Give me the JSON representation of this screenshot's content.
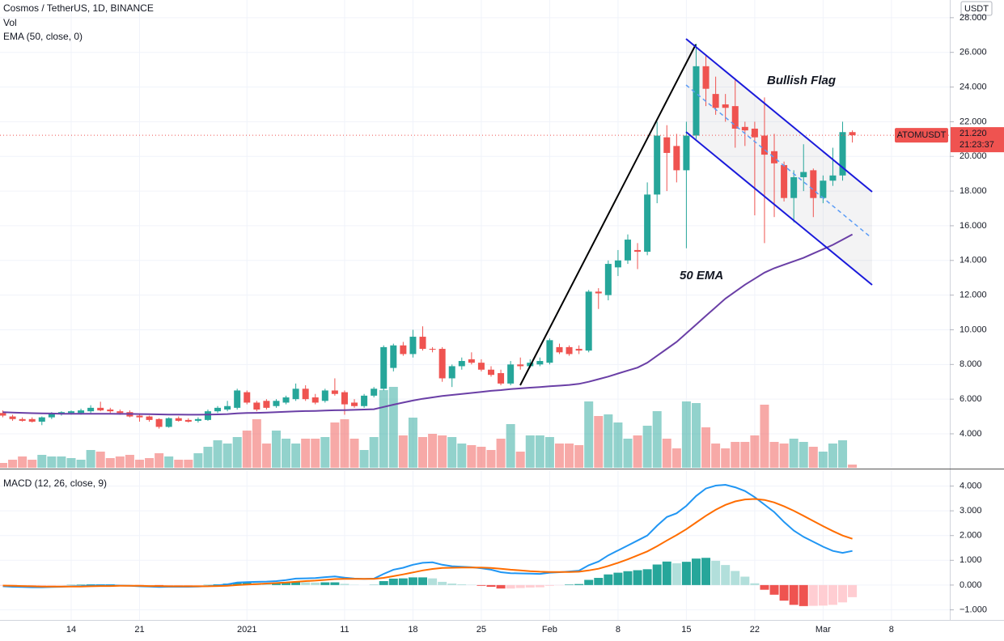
{
  "chart_data": [
    {
      "type": "candlestick",
      "title": "Cosmos / TetherUS, 1D, BINANCE",
      "currency": "USDT",
      "symbol": "ATOMUSDT",
      "last_price": {
        "value": 21.22,
        "label": "21.220"
      },
      "countdown": "21:23:37",
      "annotations": [
        "Bullish Flag",
        "50 EMA"
      ],
      "up_color": "#26a69a",
      "down_color": "#ef5350",
      "grid": true,
      "categories": [
        null,
        null,
        null,
        null,
        null,
        null,
        null,
        "14",
        null,
        null,
        null,
        null,
        null,
        null,
        "21",
        null,
        null,
        null,
        null,
        null,
        null,
        null,
        null,
        null,
        null,
        "2021",
        null,
        null,
        null,
        null,
        null,
        null,
        null,
        null,
        null,
        "11",
        null,
        null,
        null,
        null,
        null,
        null,
        "18",
        null,
        null,
        null,
        null,
        null,
        null,
        "25",
        null,
        null,
        null,
        null,
        null,
        null,
        "Feb",
        null,
        null,
        null,
        null,
        null,
        null,
        "8",
        null,
        null,
        null,
        null,
        null,
        null,
        "15",
        null,
        null,
        null,
        null,
        null,
        null,
        "22",
        null,
        null,
        null,
        null,
        null,
        null,
        "Mar",
        null,
        null,
        null,
        null,
        null,
        null,
        "8"
      ],
      "open": [
        5.2,
        5.0,
        4.85,
        4.85,
        4.7,
        4.95,
        5.15,
        5.2,
        5.2,
        5.3,
        5.5,
        5.4,
        5.3,
        5.25,
        5.05,
        5.0,
        4.85,
        4.4,
        4.9,
        4.8,
        4.75,
        4.8,
        5.3,
        5.4,
        5.5,
        6.4,
        5.8,
        5.9,
        5.6,
        5.8,
        6.0,
        6.6,
        6.1,
        5.9,
        6.5,
        6.4,
        5.8,
        5.6,
        6.2,
        6.6,
        7.8,
        9.1,
        8.6,
        9.6,
        8.9,
        8.9,
        7.2,
        7.9,
        8.3,
        8.1,
        7.7,
        7.5,
        6.9,
        8.0,
        7.9,
        8.0,
        8.1,
        9.0,
        9.0,
        8.9,
        8.8,
        12.2,
        12.0,
        13.6,
        14.0,
        14.6,
        14.5,
        17.8,
        21.1,
        20.6,
        19.2,
        21.2,
        25.2,
        23.6,
        23.0,
        22.9,
        21.7,
        21.6,
        21.2,
        20.3,
        19.5,
        17.6,
        18.8,
        19.2,
        17.6,
        18.6,
        18.9,
        21.4,
        null,
        null,
        null,
        null
      ],
      "high": [
        5.35,
        5.1,
        4.95,
        4.95,
        5.0,
        5.25,
        5.3,
        5.35,
        5.45,
        5.65,
        5.85,
        5.5,
        5.4,
        5.35,
        5.15,
        5.05,
        4.9,
        4.95,
        5.0,
        4.9,
        4.95,
        5.4,
        5.6,
        5.9,
        6.6,
        6.5,
        5.9,
        6.0,
        6.0,
        6.2,
        6.9,
        6.8,
        6.3,
        6.6,
        7.2,
        6.5,
        6.0,
        6.3,
        6.7,
        9.1,
        9.2,
        9.3,
        10.0,
        10.2,
        9.0,
        9.0,
        8.0,
        8.4,
        8.7,
        8.3,
        7.9,
        7.7,
        8.2,
        8.4,
        8.3,
        8.4,
        9.5,
        9.2,
        9.1,
        9.1,
        12.3,
        12.4,
        14.0,
        14.6,
        15.5,
        15.0,
        18.5,
        22.0,
        21.8,
        21.3,
        22.0,
        26.5,
        25.8,
        24.6,
        23.6,
        24.5,
        22.0,
        22.0,
        23.4,
        21.3,
        19.7,
        19.2,
        20.7,
        19.3,
        18.9,
        20.5,
        22.0,
        21.5,
        null,
        null,
        null,
        null
      ],
      "low": [
        4.95,
        4.75,
        4.7,
        4.65,
        4.5,
        4.85,
        5.05,
        5.1,
        5.1,
        5.2,
        5.3,
        5.2,
        5.1,
        4.95,
        4.7,
        4.7,
        4.3,
        4.35,
        4.7,
        4.65,
        4.65,
        4.75,
        5.2,
        5.3,
        5.4,
        5.7,
        5.3,
        5.4,
        5.5,
        5.7,
        5.9,
        5.9,
        5.7,
        5.8,
        6.2,
        5.1,
        5.5,
        5.5,
        6.1,
        6.5,
        7.6,
        8.5,
        8.4,
        8.8,
        8.7,
        7.0,
        6.7,
        7.7,
        8.0,
        7.6,
        7.3,
        6.8,
        6.8,
        7.7,
        7.8,
        7.9,
        8.0,
        8.6,
        8.5,
        8.6,
        8.7,
        11.2,
        11.7,
        13.1,
        13.8,
        13.5,
        14.3,
        17.3,
        18.0,
        18.5,
        14.7,
        21.0,
        22.9,
        22.4,
        22.0,
        20.5,
        20.6,
        16.6,
        15.0,
        16.5,
        17.4,
        16.2,
        18.0,
        16.5,
        17.3,
        18.3,
        18.6,
        20.8,
        null,
        null,
        null,
        null
      ],
      "close": [
        5.05,
        4.85,
        4.75,
        4.7,
        4.95,
        5.2,
        5.25,
        5.3,
        5.35,
        5.5,
        5.35,
        5.3,
        5.2,
        5.0,
        4.95,
        4.8,
        4.4,
        4.9,
        4.75,
        4.7,
        4.85,
        5.3,
        5.5,
        5.6,
        6.5,
        5.8,
        5.4,
        5.5,
        5.9,
        6.1,
        6.6,
        6.0,
        5.8,
        6.5,
        6.3,
        5.7,
        5.6,
        6.2,
        6.6,
        9.0,
        9.1,
        8.6,
        9.6,
        8.9,
        8.85,
        7.2,
        7.9,
        8.2,
        8.1,
        7.7,
        7.4,
        6.9,
        8.0,
        7.9,
        8.1,
        8.2,
        9.4,
        8.7,
        8.6,
        8.8,
        12.2,
        12.1,
        13.8,
        14.0,
        15.2,
        14.5,
        17.8,
        21.2,
        20.2,
        19.2,
        21.2,
        25.2,
        23.9,
        22.8,
        22.8,
        21.6,
        21.5,
        21.1,
        20.1,
        19.6,
        17.6,
        18.8,
        19.1,
        17.6,
        18.6,
        18.9,
        21.4,
        21.22,
        null,
        null,
        null,
        null
      ],
      "volume": {
        "name": "Vol",
        "up_color": "rgba(38,166,154,0.5)",
        "down_color": "rgba(239,83,80,0.5)",
        "values": [
          6,
          10,
          14,
          10,
          16,
          14,
          14,
          12,
          10,
          22,
          20,
          12,
          14,
          16,
          10,
          12,
          18,
          14,
          10,
          10,
          18,
          26,
          34,
          30,
          38,
          46,
          60,
          30,
          46,
          36,
          30,
          36,
          36,
          38,
          56,
          60,
          36,
          22,
          38,
          96,
          100,
          40,
          62,
          38,
          42,
          40,
          38,
          30,
          28,
          26,
          22,
          36,
          54,
          20,
          40,
          40,
          38,
          30,
          30,
          28,
          82,
          64,
          66,
          56,
          36,
          40,
          52,
          70,
          36,
          24,
          82,
          80,
          50,
          30,
          24,
          32,
          32,
          40,
          78,
          32,
          30,
          36,
          32,
          26,
          20,
          30,
          34,
          4,
          null,
          null,
          null,
          null
        ]
      },
      "series": [
        {
          "name": "EMA (50, close, 0)",
          "color": "#6a3fa6",
          "values": [
            5.25,
            5.23,
            5.21,
            5.19,
            5.18,
            5.17,
            5.16,
            5.16,
            5.16,
            5.16,
            5.16,
            5.16,
            5.15,
            5.15,
            5.14,
            5.13,
            5.12,
            5.11,
            5.11,
            5.1,
            5.1,
            5.11,
            5.12,
            5.14,
            5.18,
            5.2,
            5.21,
            5.23,
            5.25,
            5.27,
            5.3,
            5.31,
            5.32,
            5.34,
            5.36,
            5.37,
            5.38,
            5.4,
            5.42,
            5.55,
            5.68,
            5.8,
            5.92,
            6.02,
            6.1,
            6.18,
            6.24,
            6.3,
            6.36,
            6.42,
            6.48,
            6.52,
            6.58,
            6.62,
            6.66,
            6.7,
            6.74,
            6.78,
            6.82,
            6.88,
            7.0,
            7.15,
            7.3,
            7.48,
            7.65,
            7.82,
            8.1,
            8.5,
            8.9,
            9.3,
            9.8,
            10.3,
            10.8,
            11.3,
            11.8,
            12.2,
            12.6,
            12.95,
            13.3,
            13.55,
            13.75,
            13.95,
            14.15,
            14.4,
            14.65,
            14.9,
            15.2,
            15.5,
            null,
            null,
            null,
            null
          ]
        }
      ],
      "ylim": [
        2.04,
        29.02
      ],
      "yticks": [
        {
          "value": 4,
          "label": "4.000"
        },
        {
          "value": 6,
          "label": "6.000"
        },
        {
          "value": 8,
          "label": "8.000"
        },
        {
          "value": 10,
          "label": "10.000"
        },
        {
          "value": 12,
          "label": "12.000"
        },
        {
          "value": 14,
          "label": "14.000"
        },
        {
          "value": 16,
          "label": "16.000"
        },
        {
          "value": 18,
          "label": "18.000"
        },
        {
          "value": 20,
          "label": "20.000"
        },
        {
          "value": 22,
          "label": "22.000"
        },
        {
          "value": 24,
          "label": "24.000"
        },
        {
          "value": 26,
          "label": "26.000"
        },
        {
          "value": 28,
          "label": "28.000"
        }
      ]
    },
    {
      "type": "macd",
      "title": "MACD (12, 26, close, 9)",
      "grid": true,
      "macd": {
        "color": "#2196f3",
        "values": [
          -0.05,
          -0.07,
          -0.08,
          -0.09,
          -0.09,
          -0.08,
          -0.07,
          -0.05,
          -0.04,
          -0.02,
          -0.01,
          -0.01,
          -0.02,
          -0.03,
          -0.05,
          -0.06,
          -0.08,
          -0.07,
          -0.07,
          -0.07,
          -0.06,
          -0.04,
          -0.01,
          0.03,
          0.1,
          0.12,
          0.13,
          0.14,
          0.16,
          0.2,
          0.26,
          0.27,
          0.28,
          0.32,
          0.35,
          0.3,
          0.26,
          0.25,
          0.26,
          0.45,
          0.62,
          0.7,
          0.82,
          0.9,
          0.92,
          0.82,
          0.76,
          0.74,
          0.72,
          0.68,
          0.62,
          0.52,
          0.48,
          0.47,
          0.46,
          0.45,
          0.5,
          0.52,
          0.55,
          0.58,
          0.8,
          0.95,
          1.2,
          1.4,
          1.6,
          1.8,
          2.0,
          2.4,
          2.75,
          2.9,
          3.2,
          3.6,
          3.9,
          4.02,
          4.05,
          3.95,
          3.8,
          3.55,
          3.25,
          2.95,
          2.55,
          2.2,
          1.95,
          1.75,
          1.55,
          1.38,
          1.3,
          1.38,
          null,
          null,
          null,
          null
        ]
      },
      "signal": {
        "color": "#ff6d00",
        "values": [
          -0.02,
          -0.03,
          -0.04,
          -0.05,
          -0.06,
          -0.06,
          -0.06,
          -0.06,
          -0.06,
          -0.05,
          -0.04,
          -0.04,
          -0.03,
          -0.03,
          -0.03,
          -0.04,
          -0.04,
          -0.05,
          -0.05,
          -0.05,
          -0.05,
          -0.05,
          -0.04,
          -0.03,
          0.0,
          0.02,
          0.04,
          0.06,
          0.08,
          0.1,
          0.13,
          0.16,
          0.18,
          0.21,
          0.24,
          0.25,
          0.25,
          0.25,
          0.25,
          0.29,
          0.36,
          0.43,
          0.51,
          0.59,
          0.65,
          0.69,
          0.7,
          0.71,
          0.71,
          0.71,
          0.69,
          0.66,
          0.62,
          0.59,
          0.56,
          0.54,
          0.53,
          0.53,
          0.53,
          0.54,
          0.59,
          0.66,
          0.77,
          0.9,
          1.04,
          1.2,
          1.36,
          1.57,
          1.8,
          2.02,
          2.26,
          2.53,
          2.8,
          3.04,
          3.24,
          3.38,
          3.46,
          3.48,
          3.44,
          3.34,
          3.18,
          3.0,
          2.8,
          2.59,
          2.38,
          2.18,
          2.0,
          1.87,
          null,
          null,
          null,
          null
        ]
      },
      "histogram": {
        "colors": [
          "#26a69a",
          "#b2dfdb",
          "#ffcdd2",
          "#ef5350"
        ],
        "values": [
          -0.03,
          -0.04,
          -0.04,
          -0.04,
          -0.03,
          -0.02,
          -0.01,
          0.01,
          0.02,
          0.03,
          0.03,
          0.03,
          0.01,
          0.0,
          -0.02,
          -0.02,
          -0.04,
          -0.02,
          -0.02,
          -0.02,
          -0.01,
          0.01,
          0.03,
          0.06,
          0.1,
          0.1,
          0.09,
          0.08,
          0.08,
          0.1,
          0.13,
          0.11,
          0.1,
          0.11,
          0.11,
          0.05,
          0.01,
          0.0,
          0.01,
          0.16,
          0.26,
          0.27,
          0.31,
          0.31,
          0.27,
          0.13,
          0.06,
          0.03,
          0.01,
          -0.03,
          -0.07,
          -0.14,
          -0.14,
          -0.12,
          -0.1,
          -0.09,
          -0.03,
          -0.01,
          0.02,
          0.04,
          0.21,
          0.29,
          0.43,
          0.5,
          0.56,
          0.6,
          0.64,
          0.83,
          0.95,
          0.88,
          0.94,
          1.07,
          1.1,
          0.98,
          0.81,
          0.57,
          0.34,
          0.07,
          -0.19,
          -0.39,
          -0.63,
          -0.8,
          -0.85,
          -0.84,
          -0.83,
          -0.8,
          -0.7,
          -0.49,
          null,
          null,
          null,
          null
        ]
      },
      "ylim": [
        -1.41,
        4.64
      ],
      "yticks": [
        {
          "value": -1,
          "label": "−1.000"
        },
        {
          "value": 0,
          "label": "0.000"
        },
        {
          "value": 1,
          "label": "1.000"
        },
        {
          "value": 2,
          "label": "2.000"
        },
        {
          "value": 3,
          "label": "3.000"
        },
        {
          "value": 4,
          "label": "4.000"
        }
      ]
    }
  ]
}
